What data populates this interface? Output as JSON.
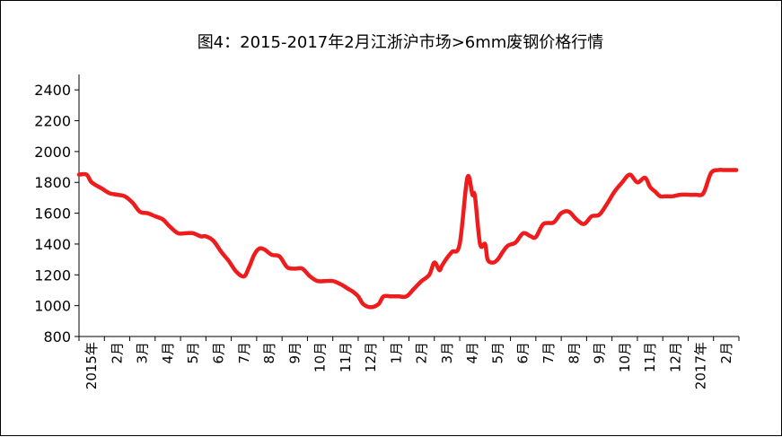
{
  "chart_data": {
    "type": "line",
    "title": "图4：2015-2017年2月江浙沪市场>6mm废钢价格行情",
    "xlabel": "",
    "ylabel": "",
    "ylim": [
      800,
      2500
    ],
    "yticks": [
      800,
      1000,
      1200,
      1400,
      1600,
      1800,
      2000,
      2200,
      2400
    ],
    "grid": false,
    "legend": "none",
    "line_color": "#ee1c1c",
    "x_tick_labels": [
      "2015年",
      "2月",
      "3月",
      "4月",
      "5月",
      "6月",
      "7月",
      "8月",
      "9月",
      "10月",
      "11月",
      "12月",
      "1月",
      "2月",
      "3月",
      "4月",
      "5月",
      "6月",
      "7月",
      "8月",
      "9月",
      "10月",
      "11月",
      "12月",
      "2017年",
      "2月"
    ],
    "series": [
      {
        "x": [
          0,
          0.3,
          0.5,
          0.9,
          1.2,
          1.5,
          1.8,
          2.1,
          2.4,
          2.7,
          3.0,
          3.3,
          3.6,
          3.9,
          4.2,
          4.5,
          4.8,
          5.0,
          5.3,
          5.6,
          5.9,
          6.2,
          6.5,
          6.7,
          6.9,
          7.1,
          7.3,
          7.6,
          7.9,
          8.2,
          8.5,
          8.8,
          9.1,
          9.4,
          9.7,
          10.0,
          10.3,
          10.6,
          10.8,
          11.0,
          11.2,
          11.5,
          11.8,
          12.0,
          12.3,
          12.6,
          12.9,
          13.2,
          13.5,
          13.8,
          14.0,
          14.2,
          14.3,
          14.5,
          14.7,
          15.0,
          15.3,
          15.5,
          15.6,
          15.8,
          16.0,
          16.1,
          16.3,
          16.5,
          16.7,
          16.9,
          17.2,
          17.5,
          17.8,
          18.0,
          18.3,
          18.7,
          19.0,
          19.3,
          19.6,
          19.9,
          20.2,
          20.5,
          20.8,
          21.1,
          21.4,
          21.7,
          22.0,
          22.3,
          22.5,
          22.7,
          22.9,
          23.1,
          23.4,
          23.7,
          24.0,
          24.3,
          24.6,
          24.9,
          25.2,
          25.4,
          25.6,
          25.9
        ],
        "values": [
          1850,
          1850,
          1800,
          1760,
          1730,
          1720,
          1710,
          1670,
          1610,
          1600,
          1580,
          1560,
          1510,
          1470,
          1470,
          1470,
          1450,
          1450,
          1420,
          1350,
          1290,
          1220,
          1190,
          1250,
          1330,
          1370,
          1365,
          1330,
          1320,
          1250,
          1240,
          1240,
          1190,
          1160,
          1160,
          1160,
          1140,
          1110,
          1090,
          1060,
          1010,
          990,
          1010,
          1060,
          1060,
          1060,
          1060,
          1110,
          1160,
          1200,
          1280,
          1230,
          1260,
          1310,
          1350,
          1400,
          1830,
          1720,
          1710,
          1400,
          1400,
          1300,
          1280,
          1300,
          1350,
          1390,
          1410,
          1470,
          1450,
          1445,
          1530,
          1540,
          1600,
          1610,
          1560,
          1530,
          1580,
          1590,
          1660,
          1740,
          1800,
          1850,
          1800,
          1830,
          1770,
          1740,
          1710,
          1710,
          1710,
          1720,
          1720,
          1720,
          1730,
          1860,
          1880,
          1880,
          1880,
          1880
        ]
      }
    ]
  }
}
